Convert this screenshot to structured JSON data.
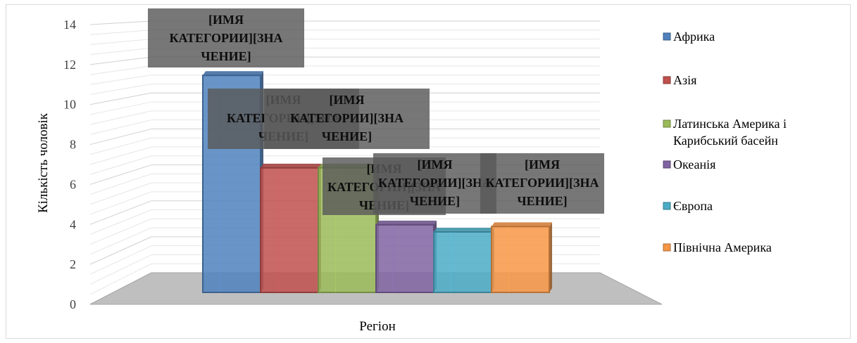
{
  "chart_data": {
    "type": "bar",
    "title": "",
    "xlabel": "Регіон",
    "ylabel": "Кількість чоловік",
    "ylim": [
      0,
      14
    ],
    "yticks": [
      0,
      2,
      4,
      6,
      8,
      10,
      12,
      14
    ],
    "grid": true,
    "legend_position": "right",
    "categories": [
      "Африка",
      "Азія",
      "Латинська Америка і Карибський басейн",
      "Океанія",
      "Європа",
      "Північна Америка"
    ],
    "values": [
      12.2,
      7,
      7,
      3.8,
      3.4,
      3.7
    ],
    "colors": [
      "#4f81bd",
      "#c0504d",
      "#9bbb59",
      "#8064a2",
      "#4bacc6",
      "#f79646"
    ],
    "data_label_text": "[ИМЯ КАТЕГОРИИ][ЗНАЧЕНИЕ]",
    "legend": [
      {
        "label": "Африка",
        "color": "#4f81bd"
      },
      {
        "label": "Азія",
        "color": "#c0504d"
      },
      {
        "label": "Латинська Америка і Карибський басейн",
        "color": "#9bbb59"
      },
      {
        "label": "Океанія",
        "color": "#8064a2"
      },
      {
        "label": "Європа",
        "color": "#4bacc6"
      },
      {
        "label": "Північна Америка",
        "color": "#f79646"
      }
    ]
  }
}
